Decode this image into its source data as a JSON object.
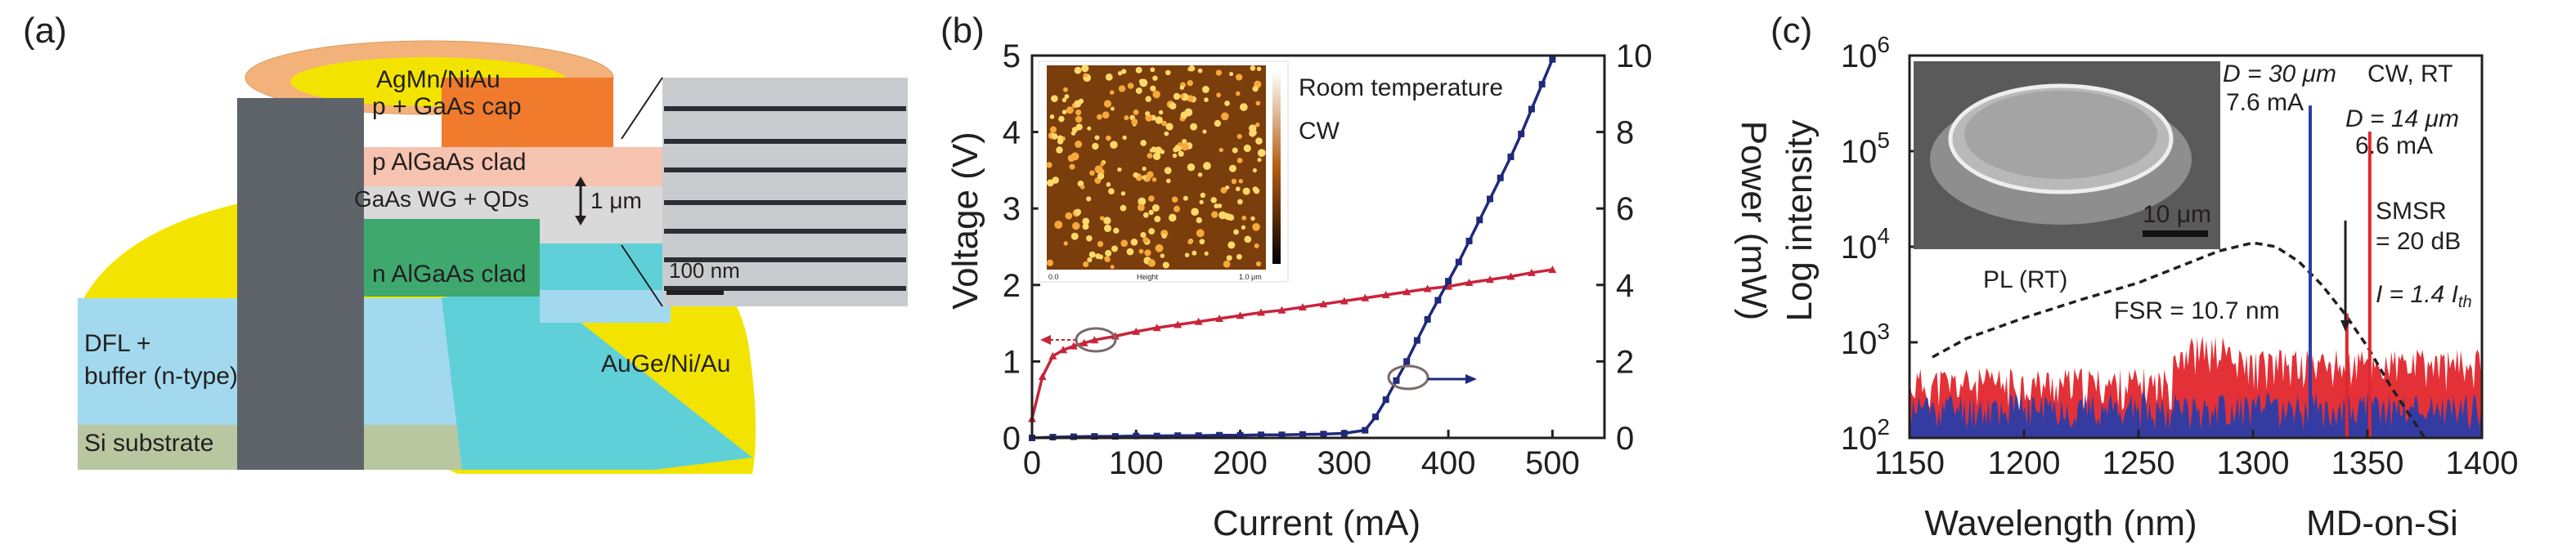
{
  "panels": {
    "a": {
      "panel_label": "(a)",
      "labels": {
        "agmn": "AgMn/NiAu",
        "cap": "p + GaAs cap",
        "pclad": "p AlGaAs clad",
        "wg": "GaAs WG + QDs",
        "thickness": "1 μm",
        "nclad": "n AlGaAs clad",
        "dfl1": "DFL +",
        "dfl2": "buffer (n-type)",
        "substrate": "Si substrate",
        "contact": "AuGe/Ni/Au",
        "tem_scale": "100 nm"
      },
      "colors": {
        "gold": "#f2e400",
        "ring": "#f2b27a",
        "cap": "#f07b2c",
        "pclad": "#f6c3b0",
        "wg": "#d9d9d9",
        "nclad": "#3fa86f",
        "buffer": "#5fd0d8",
        "dfl": "#a3d9ee",
        "substrate": "#b8c7a0",
        "tem": "#5d6369"
      }
    },
    "b": {
      "panel_label": "(b)",
      "inset_text": {
        "room": "Room temperature",
        "cw": "CW",
        "xlabel": "0.0",
        "xmid": "Height",
        "xend": "1.0 μm"
      }
    },
    "c": {
      "panel_label": "(c)",
      "annotations": {
        "d30_a": "D = 30 μm",
        "d30_b": "7.6 mA",
        "cwrt": "CW, RT",
        "d14_a": "D = 14 μm",
        "d14_b": "6.6 mA",
        "smsr_a": "SMSR",
        "smsr_b": "= 20 dB",
        "ith": "I = 1.4 I",
        "ith_sub": "th",
        "pl": "PL (RT)",
        "fsr": "FSR = 10.7 nm",
        "scale": "10 μm",
        "mdsi": "MD-on-Si"
      }
    }
  },
  "chart_data": [
    {
      "type": "line",
      "panel": "b",
      "xlabel": "Current (mA)",
      "ylabel": "Voltage (V)",
      "y2label": "Power (mW)",
      "xlim": [
        0,
        550
      ],
      "ylim": [
        0,
        5
      ],
      "y2lim": [
        0,
        10
      ],
      "xticks": [
        0,
        100,
        200,
        300,
        400,
        500
      ],
      "yticks": [
        0,
        1,
        2,
        3,
        4,
        5
      ],
      "y2ticks": [
        0,
        2,
        4,
        6,
        8,
        10
      ],
      "series": [
        {
          "axis": "left",
          "color": "#c8243b",
          "marker": "triangle",
          "x": [
            0,
            10,
            20,
            30,
            40,
            50,
            60,
            80,
            100,
            120,
            140,
            160,
            180,
            200,
            220,
            240,
            260,
            280,
            300,
            320,
            340,
            360,
            380,
            400,
            420,
            440,
            460,
            480,
            500
          ],
          "values": [
            0.25,
            0.8,
            1.07,
            1.15,
            1.2,
            1.24,
            1.28,
            1.33,
            1.39,
            1.44,
            1.48,
            1.52,
            1.56,
            1.6,
            1.64,
            1.67,
            1.71,
            1.75,
            1.79,
            1.83,
            1.87,
            1.91,
            1.95,
            1.98,
            2.03,
            2.07,
            2.11,
            2.16,
            2.2
          ]
        },
        {
          "axis": "right",
          "color": "#1f2a7a",
          "marker": "square",
          "x": [
            0,
            20,
            40,
            60,
            80,
            100,
            120,
            140,
            160,
            180,
            200,
            220,
            240,
            260,
            280,
            300,
            320,
            330,
            340,
            350,
            360,
            370,
            380,
            390,
            400,
            410,
            420,
            430,
            440,
            450,
            460,
            470,
            480,
            490,
            500
          ],
          "values": [
            0,
            0.02,
            0.03,
            0.04,
            0.04,
            0.05,
            0.05,
            0.06,
            0.06,
            0.07,
            0.07,
            0.08,
            0.08,
            0.09,
            0.1,
            0.12,
            0.2,
            0.55,
            1.0,
            1.5,
            2.0,
            2.55,
            3.1,
            3.6,
            4.1,
            4.6,
            5.15,
            5.7,
            6.25,
            6.8,
            7.35,
            7.95,
            8.6,
            9.25,
            9.9
          ]
        }
      ]
    },
    {
      "type": "line",
      "panel": "c",
      "xlabel": "Wavelength (nm)",
      "ylabel": "Log intensity",
      "xlim": [
        1150,
        1400
      ],
      "ylim": [
        100,
        1000000
      ],
      "yscale": "log",
      "xticks": [
        1150,
        1200,
        1250,
        1300,
        1350,
        1400
      ],
      "ytick_exponents": [
        2,
        3,
        4,
        5,
        6
      ],
      "series": [
        {
          "style": "dashed",
          "color": "#231f20",
          "x": [
            1160,
            1175,
            1200,
            1225,
            1250,
            1270,
            1285,
            1300,
            1310,
            1320,
            1330,
            1340,
            1350,
            1360,
            1375
          ],
          "values": [
            700,
            1100,
            1800,
            2800,
            4200,
            6500,
            9000,
            11000,
            10000,
            7000,
            4000,
            2000,
            900,
            350,
            100
          ]
        },
        {
          "name": "D = 30 μm",
          "color": "#2b3da6",
          "peak_x": 1325,
          "peak_value": 300000
        },
        {
          "name": "D = 14 μm",
          "color": "#e2262c",
          "peak_x": 1351,
          "peak_value": 160000,
          "side_mode_x": 1341,
          "side_mode_value": 2000
        }
      ]
    }
  ]
}
